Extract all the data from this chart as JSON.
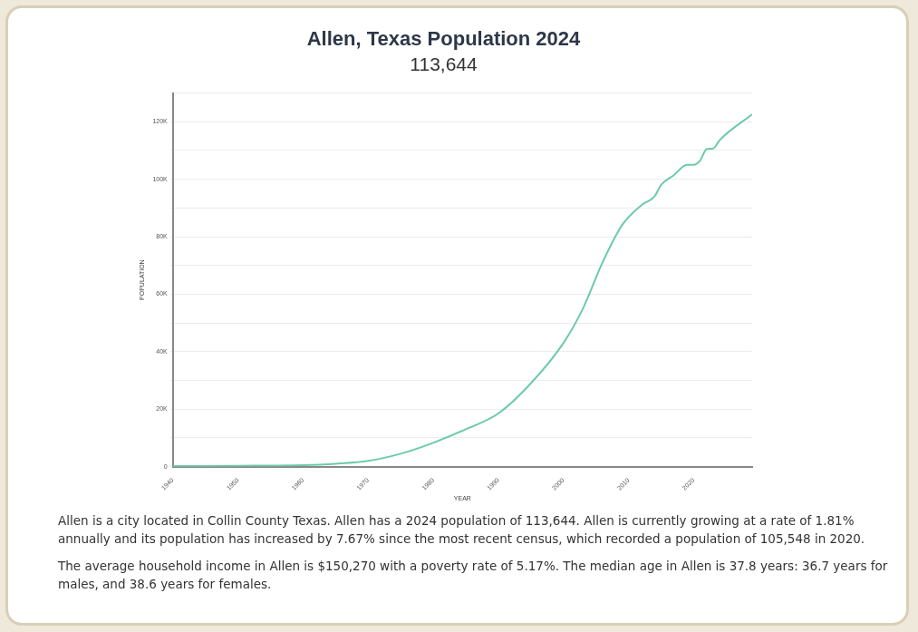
{
  "chart_data": {
    "type": "line",
    "title": "Allen, Texas Population 2024",
    "subtitle": "113,644",
    "xlabel": "YEAR",
    "ylabel": "POPULATION",
    "series": [
      {
        "color": "#6dcaa9",
        "x": [
          1940,
          1950,
          1960,
          1965,
          1970,
          1975,
          1980,
          1985,
          1990,
          1995,
          2000,
          2003,
          2006,
          2009,
          2012,
          2014,
          2015,
          2017,
          2019,
          2020,
          2021,
          2022,
          2023,
          2024,
          2029
        ],
        "values": [
          200,
          300,
          500,
          1000,
          2000,
          4500,
          8300,
          13000,
          18500,
          29000,
          43000,
          55000,
          71000,
          84000,
          91000,
          94000,
          98000,
          101500,
          105000,
          105000,
          106500,
          110500,
          110700,
          113600,
          122600
        ]
      }
    ],
    "xlim": [
      1940,
      2029
    ],
    "xticks": [
      1940,
      1950,
      1960,
      1970,
      1980,
      1990,
      2000,
      2010,
      2020
    ],
    "ylim": [
      0,
      130000
    ],
    "yticks": [
      {
        "value": 0,
        "label": "0"
      },
      {
        "value": 10000,
        "label": null
      },
      {
        "value": 20000,
        "label": "20K"
      },
      {
        "value": 30000,
        "label": null
      },
      {
        "value": 40000,
        "label": "40K"
      },
      {
        "value": 50000,
        "label": null
      },
      {
        "value": 60000,
        "label": "60K"
      },
      {
        "value": 70000,
        "label": null
      },
      {
        "value": 80000,
        "label": "80K"
      },
      {
        "value": 90000,
        "label": null
      },
      {
        "value": 100000,
        "label": "100K"
      },
      {
        "value": 110000,
        "label": null
      },
      {
        "value": 120000,
        "label": "120K"
      },
      {
        "value": 130000,
        "label": null
      }
    ],
    "grid": "y",
    "legend": false,
    "marker": "none",
    "line_style": "solid",
    "annotations": [
      "Allen is a city located in Collin County Texas. Allen has a 2024 population of 113,644. Allen is currently growing at a rate of 1.81% annually and its population has increased by 7.67% since the most recent census, which recorded a population of 105,548 in 2020.",
      "The average household income in Allen is $150,270 with a poverty rate of 5.17%. The median age in Allen is 37.8 years: 36.7 years for males, and 38.6 years for females."
    ]
  }
}
